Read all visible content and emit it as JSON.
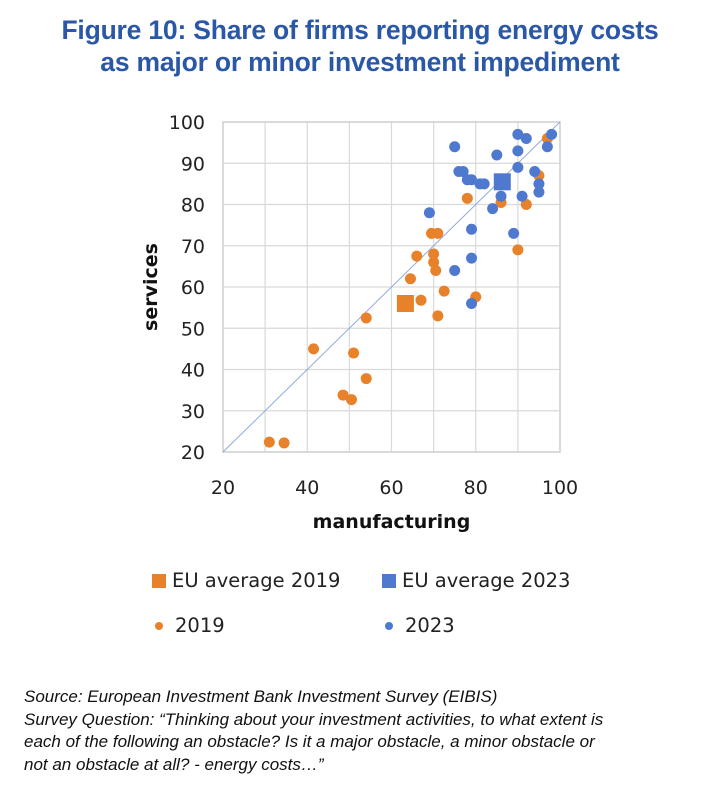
{
  "title_lines": [
    "Figure 10: Share of firms reporting energy costs",
    "as major or minor investment impediment"
  ],
  "colors": {
    "title": "#2a57a6",
    "orange": "#e8822a",
    "blue": "#4e79cf",
    "grid": "#d9d9d9",
    "diagonal": "#8faadc"
  },
  "chart_data": {
    "type": "scatter",
    "title": "Figure 10: Share of firms reporting energy costs as major or minor investment impediment",
    "xlabel": "manufacturing",
    "ylabel": "services",
    "xlim": [
      20,
      100
    ],
    "ylim": [
      20,
      100
    ],
    "xticks": [
      "20",
      "40",
      "60",
      "80",
      "100"
    ],
    "yticks": [
      "20",
      "30",
      "40",
      "50",
      "60",
      "70",
      "80",
      "90",
      "100"
    ],
    "grid": true,
    "reference_line": "45-degree line (y = x)",
    "legend_position": "bottom",
    "series": [
      {
        "name": "EU average 2019",
        "marker": "square",
        "color": "#e8822a",
        "points": [
          [
            63.3,
            56
          ]
        ]
      },
      {
        "name": "EU average 2023",
        "marker": "square",
        "color": "#4e79cf",
        "points": [
          [
            86.3,
            85.5
          ]
        ]
      },
      {
        "name": "2019",
        "marker": "circle",
        "color": "#e8822a",
        "points": [
          [
            97,
            96
          ],
          [
            95,
            87
          ],
          [
            78,
            81.5
          ],
          [
            86,
            80.5
          ],
          [
            92,
            80
          ],
          [
            69.5,
            73
          ],
          [
            71,
            73
          ],
          [
            90,
            69
          ],
          [
            66,
            67.5
          ],
          [
            70,
            68
          ],
          [
            70,
            66
          ],
          [
            70.5,
            64
          ],
          [
            64.5,
            62
          ],
          [
            72.5,
            59
          ],
          [
            80,
            57.6
          ],
          [
            67,
            56.8
          ],
          [
            54,
            52.5
          ],
          [
            71,
            53
          ],
          [
            41.5,
            45
          ],
          [
            51,
            44
          ],
          [
            54,
            37.8
          ],
          [
            48.5,
            33.8
          ],
          [
            50.5,
            32.7
          ],
          [
            31,
            22.4
          ],
          [
            34.5,
            22.2
          ]
        ]
      },
      {
        "name": "2023",
        "marker": "circle",
        "color": "#4e79cf",
        "points": [
          [
            75,
            94
          ],
          [
            76,
            88
          ],
          [
            77,
            88
          ],
          [
            78,
            86
          ],
          [
            79,
            86
          ],
          [
            81,
            85
          ],
          [
            82,
            85
          ],
          [
            90,
            97
          ],
          [
            92,
            96
          ],
          [
            98,
            97
          ],
          [
            97,
            94
          ],
          [
            85,
            92
          ],
          [
            90,
            93
          ],
          [
            90,
            89
          ],
          [
            94,
            88
          ],
          [
            95,
            85
          ],
          [
            95,
            83
          ],
          [
            86,
            82
          ],
          [
            91,
            82
          ],
          [
            84,
            79
          ],
          [
            69,
            78
          ],
          [
            79,
            74
          ],
          [
            89,
            73
          ],
          [
            79,
            67
          ],
          [
            75,
            64
          ],
          [
            79,
            56
          ]
        ]
      }
    ]
  },
  "legend": {
    "items": [
      {
        "label": "EU average 2019",
        "marker": "square",
        "color": "#e8822a"
      },
      {
        "label": "EU average 2023",
        "marker": "square",
        "color": "#4e79cf"
      },
      {
        "label": "2019",
        "marker": "circle",
        "color": "#e8822a"
      },
      {
        "label": "2023",
        "marker": "circle",
        "color": "#4e79cf"
      }
    ]
  },
  "source_lines": [
    "Source: European Investment Bank Investment Survey (EIBIS)",
    "Survey Question: “Thinking about your investment activities, to what extent is",
    "each of the following an obstacle? Is it a major obstacle, a minor obstacle or",
    "not an obstacle at all? - energy costs…”"
  ]
}
